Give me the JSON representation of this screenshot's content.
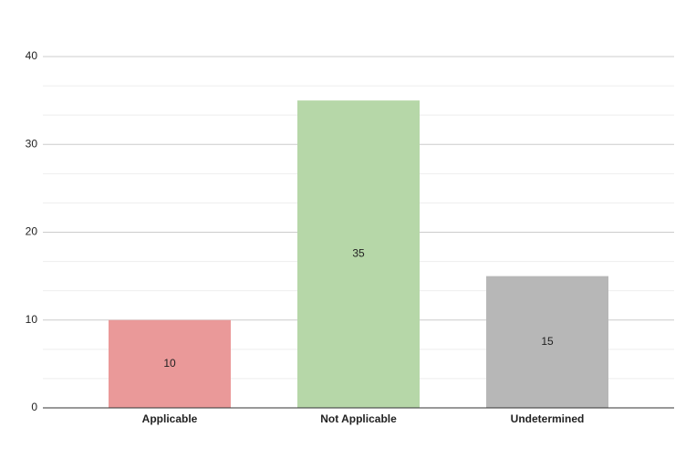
{
  "chart_data": {
    "type": "bar",
    "categories": [
      "Applicable",
      "Not Applicable",
      "Undetermined"
    ],
    "values": [
      10,
      35,
      15
    ],
    "colors": [
      "#ea9999",
      "#b6d7a8",
      "#b7b7b7"
    ],
    "ylim": [
      0,
      40
    ],
    "yticks": [
      0,
      10,
      20,
      30,
      40
    ],
    "grid": true,
    "minor_gridlines": 2
  }
}
